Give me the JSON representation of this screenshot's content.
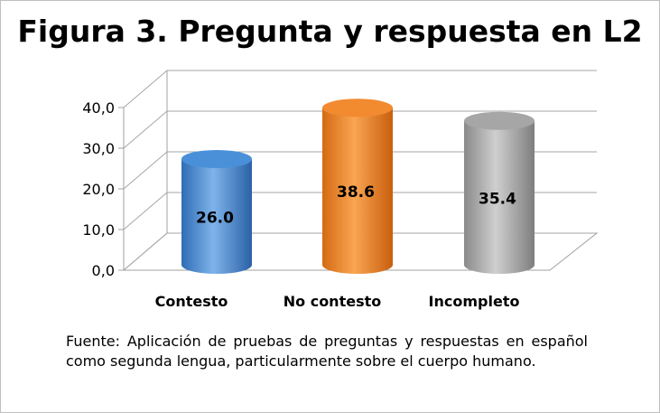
{
  "chart_data": {
    "type": "bar",
    "style": "3d-cylinder",
    "title": "Figura 3. Pregunta y respuesta en L2",
    "categories": [
      "Contesto",
      "No contesto",
      "Incompleto"
    ],
    "values": [
      26.0,
      38.6,
      35.4
    ],
    "data_labels": [
      "26.0",
      "38.6",
      "35.4"
    ],
    "y_ticks": [
      "0,0",
      "10,0",
      "20,0",
      "30,0",
      "40,0"
    ],
    "ylim": [
      0,
      40
    ],
    "grid": true,
    "legend": "none",
    "colors": [
      "#4a90d9",
      "#f28a30",
      "#a6a6a6"
    ]
  },
  "caption": "Fuente: Aplicación de pruebas de preguntas y respuestas en español como segunda lengua, particularmente sobre el cuerpo humano."
}
